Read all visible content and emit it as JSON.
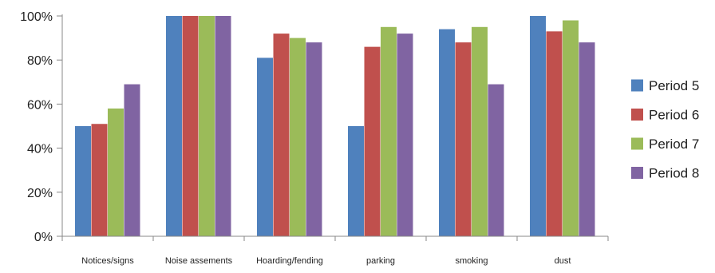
{
  "chart_data": {
    "type": "bar",
    "title": "",
    "xlabel": "",
    "ylabel": "",
    "ylim": [
      0,
      100
    ],
    "y_ticks": [
      0,
      20,
      40,
      60,
      80,
      100
    ],
    "y_tick_labels": [
      "0%",
      "20%",
      "40%",
      "60%",
      "80%",
      "100%"
    ],
    "grid": false,
    "legend_position": "right",
    "categories": [
      "Notices/signs",
      "Noise assements",
      "Hoarding/fending",
      "parking",
      "smoking",
      "dust"
    ],
    "series": [
      {
        "name": "Period 5",
        "color": "#4F81BD",
        "values": [
          50,
          100,
          81,
          50,
          94,
          100
        ]
      },
      {
        "name": "Period 6",
        "color": "#C0504D",
        "values": [
          51,
          100,
          92,
          86,
          88,
          93
        ]
      },
      {
        "name": "Period 7",
        "color": "#9BBB59",
        "values": [
          58,
          100,
          90,
          95,
          95,
          98
        ]
      },
      {
        "name": "Period 8",
        "color": "#8064A2",
        "values": [
          69,
          100,
          88,
          92,
          69,
          88
        ]
      }
    ]
  }
}
